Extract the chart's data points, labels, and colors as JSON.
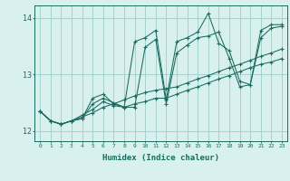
{
  "xlabel": "Humidex (Indice chaleur)",
  "ylabel": "",
  "bg_color": "#d8f0ee",
  "grid_color": "#a0ccc8",
  "line_color": "#1a6b60",
  "ylim": [
    11.82,
    14.22
  ],
  "xlim": [
    -0.5,
    23.5
  ],
  "yticks": [
    12,
    13,
    14
  ],
  "xticks": [
    0,
    1,
    2,
    3,
    4,
    5,
    6,
    7,
    8,
    9,
    10,
    11,
    12,
    13,
    14,
    15,
    16,
    17,
    18,
    19,
    20,
    21,
    22,
    23
  ],
  "series1": [
    12.35,
    12.18,
    12.12,
    12.18,
    12.22,
    12.48,
    12.58,
    12.5,
    12.42,
    12.42,
    13.48,
    13.62,
    12.48,
    13.38,
    13.52,
    13.65,
    13.68,
    13.75,
    13.28,
    12.78,
    12.82,
    13.65,
    13.82,
    13.85
  ],
  "series2": [
    12.35,
    12.18,
    12.12,
    12.18,
    12.22,
    12.58,
    12.65,
    12.48,
    12.42,
    13.58,
    13.65,
    13.78,
    12.55,
    13.58,
    13.65,
    13.75,
    14.08,
    13.55,
    13.42,
    12.88,
    12.82,
    13.78,
    13.88,
    13.88
  ],
  "series3": [
    12.35,
    12.18,
    12.12,
    12.18,
    12.28,
    12.38,
    12.52,
    12.45,
    12.42,
    12.48,
    12.52,
    12.58,
    12.58,
    12.65,
    12.72,
    12.78,
    12.85,
    12.92,
    12.98,
    13.05,
    13.12,
    13.18,
    13.22,
    13.28
  ],
  "series4": [
    12.35,
    12.18,
    12.12,
    12.18,
    12.25,
    12.32,
    12.42,
    12.48,
    12.55,
    12.62,
    12.68,
    12.72,
    12.75,
    12.78,
    12.85,
    12.92,
    12.98,
    13.05,
    13.12,
    13.18,
    13.25,
    13.32,
    13.38,
    13.45
  ]
}
